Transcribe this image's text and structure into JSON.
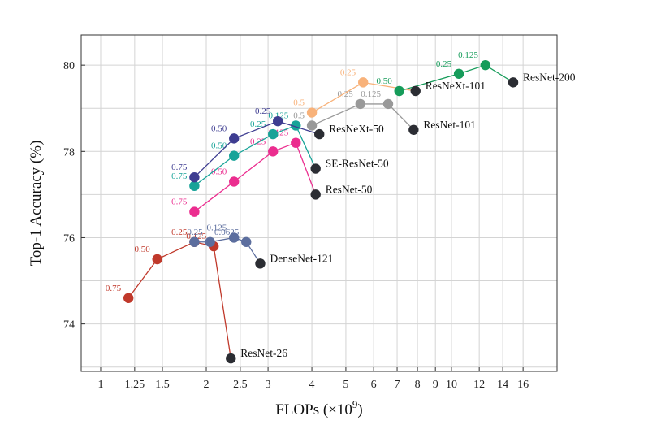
{
  "chart_data": {
    "type": "line",
    "xlabel": "FLOPs (×10",
    "xlabel_sup": "9",
    "xlabel_close": ")",
    "ylabel": "Top-1 Accuracy (%)",
    "x_scale": "log",
    "xlim": [
      0.88,
      20
    ],
    "ylim": [
      72.9,
      80.7
    ],
    "x_ticks": [
      1,
      1.25,
      1.5,
      2,
      2.5,
      3,
      4,
      5,
      6,
      7,
      8,
      9,
      10,
      12,
      14,
      16
    ],
    "x_tick_labels": [
      "1",
      "1.25",
      "1.5",
      "2",
      "2.5",
      "3",
      "4",
      "5",
      "6",
      "7",
      "8",
      "9",
      "10",
      "12",
      "14",
      "16"
    ],
    "y_ticks": [
      74,
      76,
      78,
      80
    ],
    "y_tick_labels": [
      "74",
      "76",
      "78",
      "80"
    ],
    "grid": true,
    "baselines": [
      {
        "label": "ResNet-200",
        "x": 15.0,
        "y": 79.6
      },
      {
        "label": "ResNeXt-101",
        "x": 7.9,
        "y": 79.4
      },
      {
        "label": "ResNet-101",
        "x": 7.8,
        "y": 78.5
      },
      {
        "label": "ResNeXt-50",
        "x": 4.2,
        "y": 78.4
      },
      {
        "label": "SE-ResNet-50",
        "x": 4.1,
        "y": 77.6
      },
      {
        "label": "ResNet-50",
        "x": 4.1,
        "y": 77.0
      },
      {
        "label": "DenseNet-121",
        "x": 2.85,
        "y": 75.4
      },
      {
        "label": "ResNet-26",
        "x": 2.35,
        "y": 73.2
      }
    ],
    "series": [
      {
        "color": "#c0392b",
        "points": [
          {
            "x": 1.2,
            "y": 74.6,
            "label": "0.75"
          },
          {
            "x": 1.45,
            "y": 75.5,
            "label": "0.50"
          },
          {
            "x": 1.85,
            "y": 75.9,
            "label": "0.25"
          },
          {
            "x": 2.1,
            "y": 75.8,
            "label": "0.125"
          },
          {
            "x": 2.35,
            "y": 73.2
          }
        ]
      },
      {
        "color": "#5c6e9e",
        "points": [
          {
            "x": 1.85,
            "y": 75.9
          },
          {
            "x": 2.05,
            "y": 75.9,
            "label": "0.25"
          },
          {
            "x": 2.4,
            "y": 76.0,
            "label": "0.125"
          },
          {
            "x": 2.6,
            "y": 75.9,
            "label": "0.0625"
          },
          {
            "x": 2.85,
            "y": 75.4
          }
        ]
      },
      {
        "color": "#eb2d8f",
        "points": [
          {
            "x": 1.85,
            "y": 76.6,
            "label": "0.75"
          },
          {
            "x": 2.4,
            "y": 77.3,
            "label": "0.50"
          },
          {
            "x": 3.1,
            "y": 78.0,
            "label": "0.25"
          },
          {
            "x": 3.6,
            "y": 78.2,
            "label": "0.125"
          },
          {
            "x": 4.1,
            "y": 77.0
          }
        ]
      },
      {
        "color": "#17a398",
        "points": [
          {
            "x": 1.85,
            "y": 77.2,
            "label": "0.75"
          },
          {
            "x": 2.4,
            "y": 77.9,
            "label": "0.50"
          },
          {
            "x": 3.1,
            "y": 78.4,
            "label": "0.25"
          },
          {
            "x": 3.6,
            "y": 78.6,
            "label": "0.125"
          },
          {
            "x": 4.1,
            "y": 77.6
          }
        ]
      },
      {
        "color": "#3e3d91",
        "points": [
          {
            "x": 1.85,
            "y": 77.4,
            "label": "0.75"
          },
          {
            "x": 2.4,
            "y": 78.3,
            "label": "0.50"
          },
          {
            "x": 3.2,
            "y": 78.7,
            "label": "0.25"
          },
          {
            "x": 4.2,
            "y": 78.4
          }
        ]
      },
      {
        "color": "#999999",
        "points": [
          {
            "x": 4.0,
            "y": 78.6,
            "label": "0.5"
          },
          {
            "x": 5.5,
            "y": 79.1,
            "label": "0.25"
          },
          {
            "x": 6.6,
            "y": 79.1,
            "label": "0.125"
          },
          {
            "x": 7.8,
            "y": 78.5
          }
        ]
      },
      {
        "color": "#f8b27a",
        "points": [
          {
            "x": 4.0,
            "y": 78.9,
            "label": "0.5"
          },
          {
            "x": 5.6,
            "y": 79.6,
            "label": "0.25"
          },
          {
            "x": 7.9,
            "y": 79.4
          }
        ]
      },
      {
        "color": "#169c5a",
        "points": [
          {
            "x": 7.1,
            "y": 79.4,
            "label": "0.50"
          },
          {
            "x": 10.5,
            "y": 79.8,
            "label": "0.25"
          },
          {
            "x": 12.5,
            "y": 80.0,
            "label": "0.125"
          },
          {
            "x": 15.0,
            "y": 79.6
          }
        ]
      }
    ]
  }
}
